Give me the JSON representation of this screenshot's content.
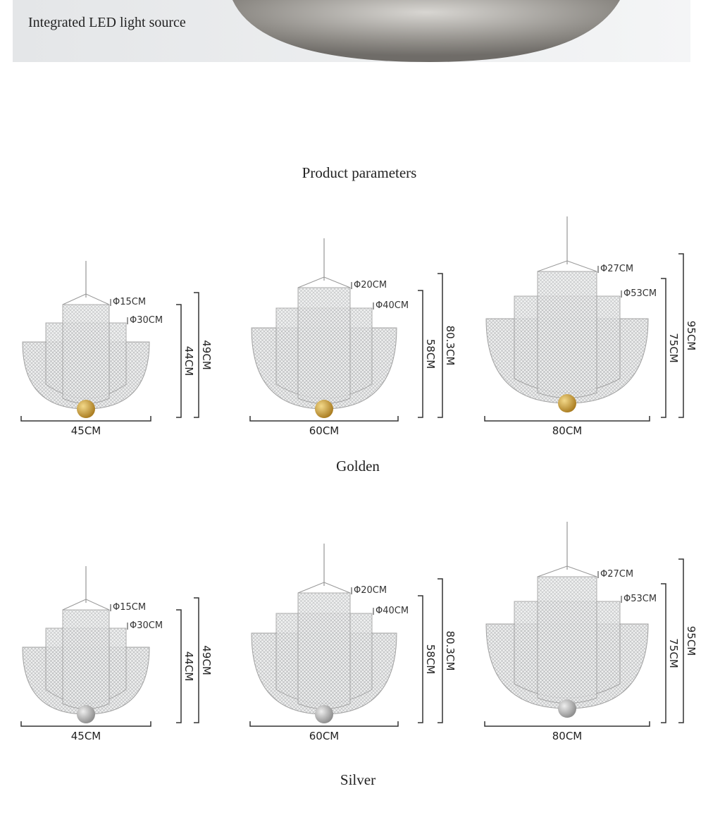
{
  "banner": {
    "caption": "Integrated LED light source"
  },
  "title": "Product parameters",
  "groups": [
    {
      "label": "Golden",
      "lamps": [
        {
          "top_diameter": "Φ15CM",
          "mid_diameter": "Φ30CM",
          "inner_height": "44CM",
          "total_height": "49CM",
          "width": "45CM"
        },
        {
          "top_diameter": "Φ20CM",
          "mid_diameter": "Φ40CM",
          "inner_height": "58CM",
          "total_height": "80.3CM",
          "width": "60CM"
        },
        {
          "top_diameter": "Φ27CM",
          "mid_diameter": "Φ53CM",
          "inner_height": "75CM",
          "total_height": "95CM",
          "width": "80CM"
        }
      ]
    },
    {
      "label": "Silver",
      "lamps": [
        {
          "top_diameter": "Φ15CM",
          "mid_diameter": "Φ30CM",
          "inner_height": "44CM",
          "total_height": "49CM",
          "width": "45CM"
        },
        {
          "top_diameter": "Φ20CM",
          "mid_diameter": "Φ40CM",
          "inner_height": "58CM",
          "total_height": "80.3CM",
          "width": "60CM"
        },
        {
          "top_diameter": "Φ27CM",
          "mid_diameter": "Φ53CM",
          "inner_height": "75CM",
          "total_height": "95CM",
          "width": "80CM"
        }
      ]
    }
  ]
}
